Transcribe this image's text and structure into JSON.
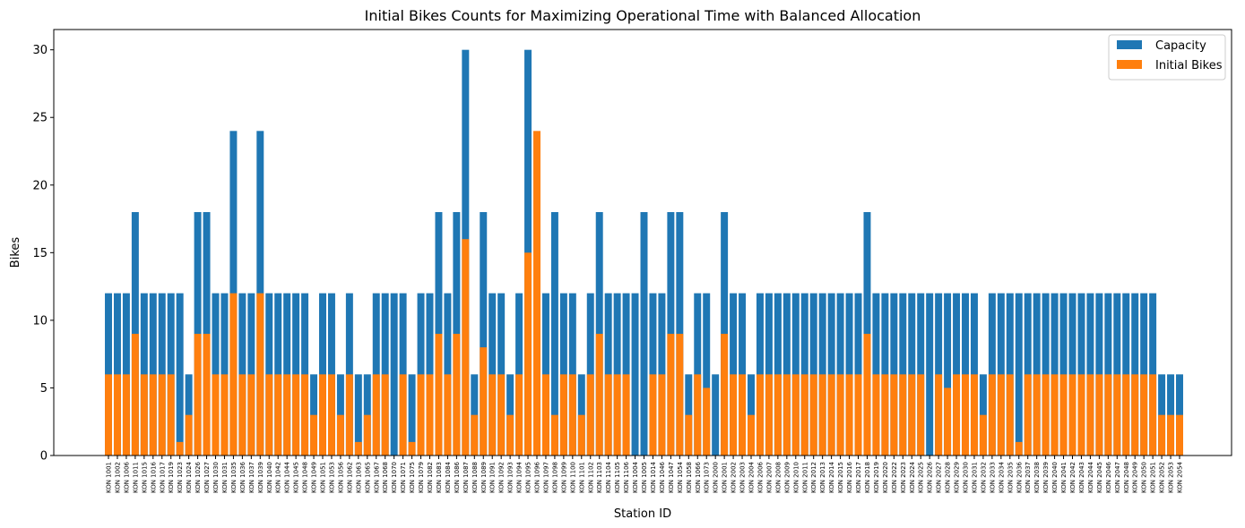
{
  "chart_data": {
    "type": "bar",
    "title": "Initial Bikes Counts for Maximizing Operational Time with Balanced Allocation",
    "xlabel": "Station ID",
    "ylabel": "Bikes",
    "ylim": [
      0,
      31.5
    ],
    "yticks": [
      0,
      5,
      10,
      15,
      20,
      25,
      30
    ],
    "legend_position": "top-right",
    "grid": false,
    "categories": [
      "KON 1001",
      "KON 1002",
      "KON 1006",
      "KON 1011",
      "KON 1015",
      "KON 1016",
      "KON 1017",
      "KON 1019",
      "KON 1023",
      "KON 1024",
      "KON 1026",
      "KON 1027",
      "KON 1030",
      "KON 1031",
      "KON 1035",
      "KON 1036",
      "KON 1037",
      "KON 1039",
      "KON 1040",
      "KON 1042",
      "KON 1044",
      "KON 1045",
      "KON 1048",
      "KON 1049",
      "KON 1051",
      "KON 1053",
      "KON 1056",
      "KON 1062",
      "KON 1063",
      "KON 1065",
      "KON 1067",
      "KON 1068",
      "KON 1070",
      "KON 1071",
      "KON 1075",
      "KON 1079",
      "KON 1082",
      "KON 1083",
      "KON 1084",
      "KON 1086",
      "KON 1087",
      "KON 1088",
      "KON 1089",
      "KON 1091",
      "KON 1092",
      "KON 1093",
      "KON 1094",
      "KON 1095",
      "KON 1096",
      "KON 1097",
      "KON 1098",
      "KON 1099",
      "KON 1100",
      "KON 1101",
      "KON 1102",
      "KON 1103",
      "KON 1104",
      "KON 1105",
      "KON 1106",
      "KON 1004",
      "KON 1005",
      "KON 1014",
      "KON 1046",
      "KON 1047",
      "KON 1054",
      "KON 1058",
      "KON 1066",
      "KON 1073",
      "KON 2000",
      "KON 2001",
      "KON 2002",
      "KON 2003",
      "KON 2004",
      "KON 2006",
      "KON 2007",
      "KON 2008",
      "KON 2009",
      "KON 2010",
      "KON 2011",
      "KON 2012",
      "KON 2013",
      "KON 2014",
      "KON 2015",
      "KON 2016",
      "KON 2017",
      "KON 2018",
      "KON 2019",
      "KON 2020",
      "KON 2022",
      "KON 2023",
      "KON 2024",
      "KON 2025",
      "KON 2026",
      "KON 2027",
      "KON 2028",
      "KON 2029",
      "KON 2030",
      "KON 2031",
      "KON 2032",
      "KON 2033",
      "KON 2034",
      "KON 2035",
      "KON 2036",
      "KON 2037",
      "KON 2038",
      "KON 2039",
      "KON 2040",
      "KON 2041",
      "KON 2042",
      "KON 2043",
      "KON 2044",
      "KON 2045",
      "KON 2046",
      "KON 2047",
      "KON 2048",
      "KON 2049",
      "KON 2050",
      "KON 2051",
      "KON 2052",
      "KON 2053",
      "KON 2054"
    ],
    "series": [
      {
        "name": "Capacity",
        "color": "#1f77b4",
        "values": [
          12,
          12,
          12,
          18,
          12,
          12,
          12,
          12,
          12,
          6,
          18,
          18,
          12,
          12,
          24,
          12,
          12,
          24,
          12,
          12,
          12,
          12,
          12,
          6,
          12,
          12,
          6,
          12,
          6,
          6,
          12,
          12,
          12,
          12,
          6,
          12,
          12,
          18,
          12,
          18,
          30,
          6,
          18,
          12,
          12,
          6,
          12,
          30,
          0,
          12,
          18,
          12,
          12,
          6,
          12,
          18,
          12,
          12,
          12,
          12,
          18,
          12,
          12,
          18,
          18,
          6,
          12,
          12,
          6,
          18,
          12,
          12,
          6,
          12,
          12,
          12,
          12,
          12,
          12,
          12,
          12,
          12,
          12,
          12,
          12,
          18,
          12,
          12,
          12,
          12,
          12,
          12,
          12,
          12,
          12,
          12,
          12,
          12,
          6,
          12,
          12,
          12,
          12,
          12,
          12,
          12,
          12,
          12,
          12,
          12,
          12,
          12,
          12,
          12,
          12,
          12,
          12,
          12,
          6,
          6,
          6
        ]
      },
      {
        "name": "Initial Bikes",
        "color": "#ff7f0e",
        "values": [
          6,
          6,
          6,
          9,
          6,
          6,
          6,
          6,
          1,
          3,
          9,
          9,
          6,
          6,
          12,
          6,
          6,
          12,
          6,
          6,
          6,
          6,
          6,
          3,
          6,
          6,
          3,
          6,
          1,
          3,
          6,
          6,
          0,
          6,
          1,
          6,
          6,
          9,
          6,
          9,
          16,
          3,
          8,
          6,
          6,
          3,
          6,
          15,
          24,
          6,
          3,
          6,
          6,
          3,
          6,
          9,
          6,
          6,
          6,
          0,
          0,
          6,
          6,
          9,
          9,
          3,
          6,
          5,
          0,
          9,
          6,
          6,
          3,
          6,
          6,
          6,
          6,
          6,
          6,
          6,
          6,
          6,
          6,
          6,
          6,
          9,
          6,
          6,
          6,
          6,
          6,
          6,
          0,
          6,
          5,
          6,
          6,
          6,
          3,
          6,
          6,
          6,
          1,
          6,
          6,
          6,
          6,
          6,
          6,
          6,
          6,
          6,
          6,
          6,
          6,
          6,
          6,
          6,
          3,
          3,
          3
        ]
      }
    ]
  }
}
